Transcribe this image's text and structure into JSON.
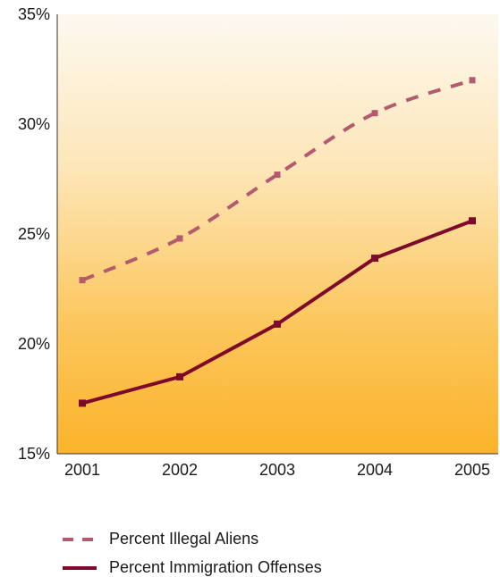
{
  "chart_data": {
    "type": "line",
    "categories": [
      "2001",
      "2002",
      "2003",
      "2004",
      "2005"
    ],
    "series": [
      {
        "name": "Percent Illegal Aliens",
        "values": [
          22.9,
          24.8,
          27.7,
          30.5,
          32.0
        ],
        "color": "#b45a6e",
        "style": "dashed"
      },
      {
        "name": "Percent Immigration Offenses",
        "values": [
          17.3,
          18.5,
          20.9,
          23.9,
          25.6
        ],
        "color": "#7d0a2a",
        "style": "solid"
      }
    ],
    "y_ticks": [
      "15%",
      "20%",
      "25%",
      "30%",
      "35%"
    ],
    "ylim": [
      15,
      35
    ],
    "xlabel": "",
    "ylabel": "",
    "title": "",
    "grid": false,
    "legend_position": "bottom",
    "background": "gradient #fdf8ee to #fbb52e"
  }
}
